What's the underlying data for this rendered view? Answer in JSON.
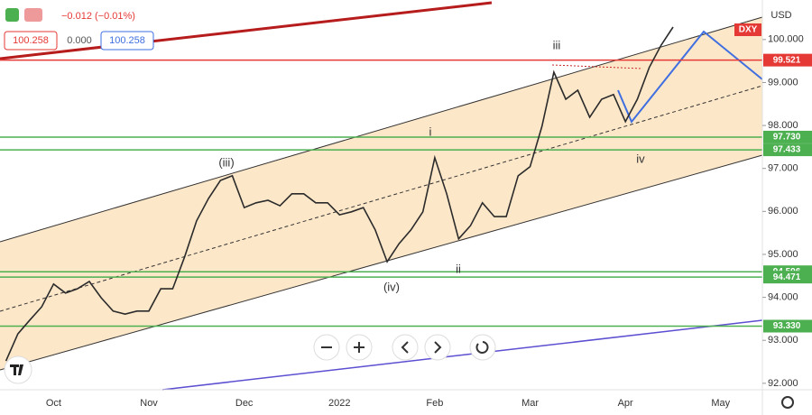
{
  "chart_data": {
    "type": "line",
    "symbol": "DXY",
    "currency": "USD",
    "quote": {
      "change": "−0.012 (−0.01%)",
      "bid": "100.258",
      "spread": "0.000",
      "ask": "100.258"
    },
    "categories": [
      null,
      null,
      null,
      null,
      "Oct",
      null,
      null,
      null,
      null,
      null,
      null,
      null,
      "Nov",
      null,
      null,
      null,
      null,
      null,
      null,
      null,
      "Dec",
      null,
      null,
      null,
      null,
      null,
      null,
      null,
      "2022",
      null,
      null,
      null,
      null,
      null,
      null,
      null,
      "Feb",
      null,
      null,
      null,
      null,
      null,
      null,
      null,
      "Mar",
      null,
      null,
      null,
      null,
      null,
      null,
      null,
      "Apr",
      null,
      null,
      null,
      null,
      null,
      null,
      null,
      "May",
      null,
      null,
      null
    ],
    "series": [
      {
        "name": "DXY",
        "color": "#2b2b2b",
        "values": [
          92.52,
          93.15,
          93.47,
          93.78,
          94.31,
          94.1,
          94.2,
          94.37,
          93.99,
          93.68,
          93.61,
          93.68,
          93.68,
          94.2,
          94.2,
          94.94,
          95.78,
          96.3,
          96.72,
          96.83,
          96.09,
          96.2,
          96.26,
          96.13,
          96.41,
          96.41,
          96.2,
          96.2,
          95.92,
          95.99,
          96.09,
          95.57,
          94.83,
          95.25,
          95.57,
          95.99,
          97.25,
          96.41,
          95.36,
          95.67,
          96.2,
          95.88,
          95.88,
          96.83,
          97.04,
          97.98,
          99.24,
          98.61,
          98.82,
          98.19,
          98.61,
          98.72,
          98.09,
          98.61,
          99.35,
          99.87,
          100.29,
          null,
          null,
          null,
          null,
          null,
          null,
          null
        ]
      }
    ],
    "ylim": [
      91.85,
      100.92
    ],
    "yticks": [
      {
        "value": 92,
        "label": "92.000"
      },
      {
        "value": 93,
        "label": "93.000"
      },
      {
        "value": 94,
        "label": "94.000"
      },
      {
        "value": 95,
        "label": "95.000"
      },
      {
        "value": 96,
        "label": "96.000"
      },
      {
        "value": 97,
        "label": "97.000"
      },
      {
        "value": 98,
        "label": "98.000"
      },
      {
        "value": 99,
        "label": "99.000"
      },
      {
        "value": 100,
        "label": "100.000"
      }
    ],
    "levels": [
      {
        "value": 99.521,
        "label": "99.521",
        "color": "#e53935"
      },
      {
        "value": 97.73,
        "label": "97.730",
        "color": "#4caf50"
      },
      {
        "value": 97.433,
        "label": "97.433",
        "color": "#4caf50"
      },
      {
        "value": 94.596,
        "label": "94.596",
        "color": "#4caf50"
      },
      {
        "value": 94.471,
        "label": "94.471",
        "color": "#4caf50"
      },
      {
        "value": 93.33,
        "label": "93.330",
        "color": "#4caf50"
      }
    ],
    "annotations": [
      "(iii)",
      "(iv)",
      "i",
      "ii",
      "iii",
      "iv"
    ]
  }
}
